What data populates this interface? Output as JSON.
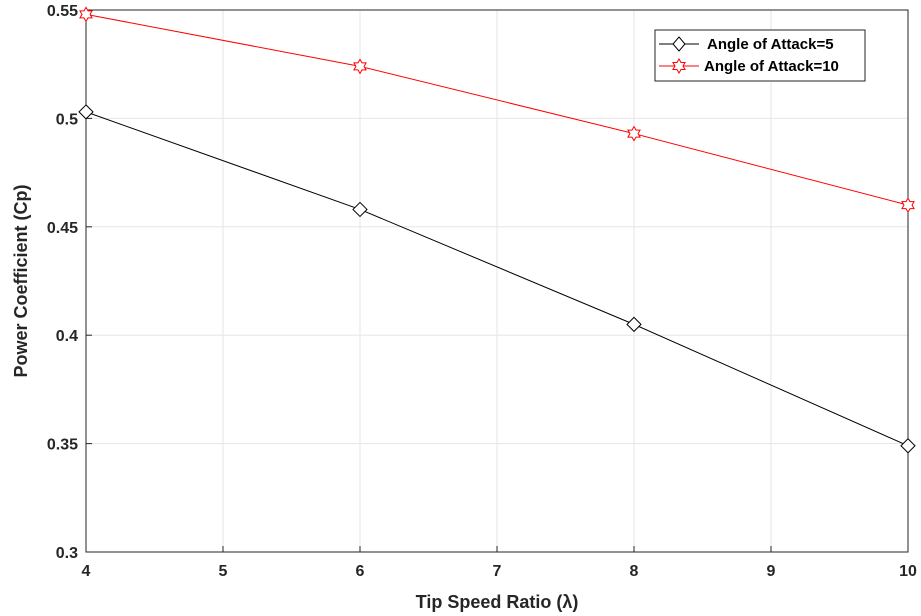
{
  "chart_data": {
    "type": "line",
    "xlabel": "Tip Speed Ratio (λ)",
    "ylabel": "Power Coefficient (Cp)",
    "xlim": [
      4,
      10
    ],
    "ylim": [
      0.3,
      0.55
    ],
    "xticks": [
      "4",
      "5",
      "6",
      "7",
      "8",
      "9",
      "10"
    ],
    "yticks": [
      "0.3",
      "0.35",
      "0.4",
      "0.45",
      "0.5",
      "0.55"
    ],
    "grid": true,
    "legend_position": "top-right",
    "series": [
      {
        "name": "Angle of Attack=5",
        "color": "#000000",
        "marker": "diamond",
        "x": [
          4,
          6,
          8,
          10
        ],
        "y": [
          0.503,
          0.458,
          0.405,
          0.349
        ]
      },
      {
        "name": "Angle of Attack=10",
        "color": "#ff0000",
        "marker": "hexagram",
        "x": [
          4,
          6,
          8,
          10
        ],
        "y": [
          0.548,
          0.524,
          0.493,
          0.46
        ]
      }
    ]
  }
}
